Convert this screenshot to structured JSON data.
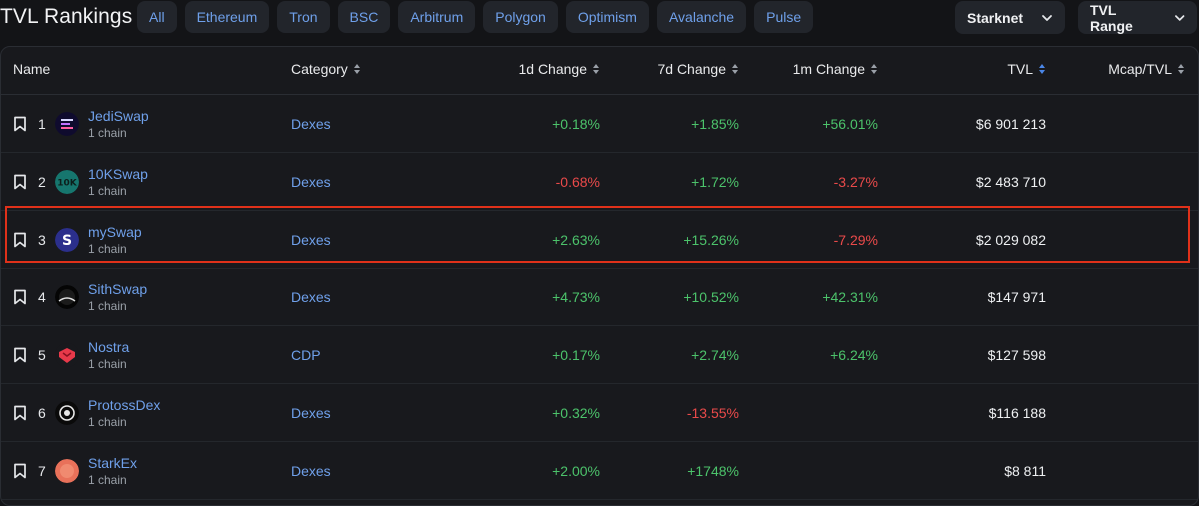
{
  "title": "TVL Rankings",
  "chain_filters": [
    "All",
    "Ethereum",
    "Tron",
    "BSC",
    "Arbitrum",
    "Polygon",
    "Optimism",
    "Avalanche",
    "Pulse"
  ],
  "chain_select": {
    "value": "Starknet"
  },
  "tvl_range": {
    "label": "TVL Range"
  },
  "columns": {
    "name": "Name",
    "category": "Category",
    "d1": "1d Change",
    "d7": "7d Change",
    "m1": "1m Change",
    "tvl": "TVL",
    "mcap": "Mcap/TVL"
  },
  "colors": {
    "positive": "#4cc36b",
    "negative": "#ea4a4a",
    "link": "#6fa0ea",
    "sort_active": "#4a86e8",
    "highlight": "#e0311a"
  },
  "rows": [
    {
      "rank": "1",
      "name": "JediSwap",
      "chains": "1 chain",
      "category": "Dexes",
      "d1": "+0.18%",
      "d7": "+1.85%",
      "m1": "+56.01%",
      "tvl": "$6 901 213",
      "mcap": "",
      "logo": "jediswap-logo"
    },
    {
      "rank": "2",
      "name": "10KSwap",
      "chains": "1 chain",
      "category": "Dexes",
      "d1": "-0.68%",
      "d7": "+1.72%",
      "m1": "-3.27%",
      "tvl": "$2 483 710",
      "mcap": "",
      "logo": "10kswap-logo"
    },
    {
      "rank": "3",
      "name": "mySwap",
      "chains": "1 chain",
      "category": "Dexes",
      "d1": "+2.63%",
      "d7": "+15.26%",
      "m1": "-7.29%",
      "tvl": "$2 029 082",
      "mcap": "",
      "logo": "myswap-logo",
      "highlighted": true
    },
    {
      "rank": "4",
      "name": "SithSwap",
      "chains": "1 chain",
      "category": "Dexes",
      "d1": "+4.73%",
      "d7": "+10.52%",
      "m1": "+42.31%",
      "tvl": "$147 971",
      "mcap": "",
      "logo": "sithswap-logo"
    },
    {
      "rank": "5",
      "name": "Nostra",
      "chains": "1 chain",
      "category": "CDP",
      "d1": "+0.17%",
      "d7": "+2.74%",
      "m1": "+6.24%",
      "tvl": "$127 598",
      "mcap": "",
      "logo": "nostra-logo"
    },
    {
      "rank": "6",
      "name": "ProtossDex",
      "chains": "1 chain",
      "category": "Dexes",
      "d1": "+0.32%",
      "d7": "-13.55%",
      "m1": "",
      "tvl": "$116 188",
      "mcap": "",
      "logo": "protossdex-logo"
    },
    {
      "rank": "7",
      "name": "StarkEx",
      "chains": "1 chain",
      "category": "Dexes",
      "d1": "+2.00%",
      "d7": "+1748%",
      "m1": "",
      "tvl": "$8 811",
      "mcap": "",
      "logo": "starkex-logo"
    }
  ]
}
